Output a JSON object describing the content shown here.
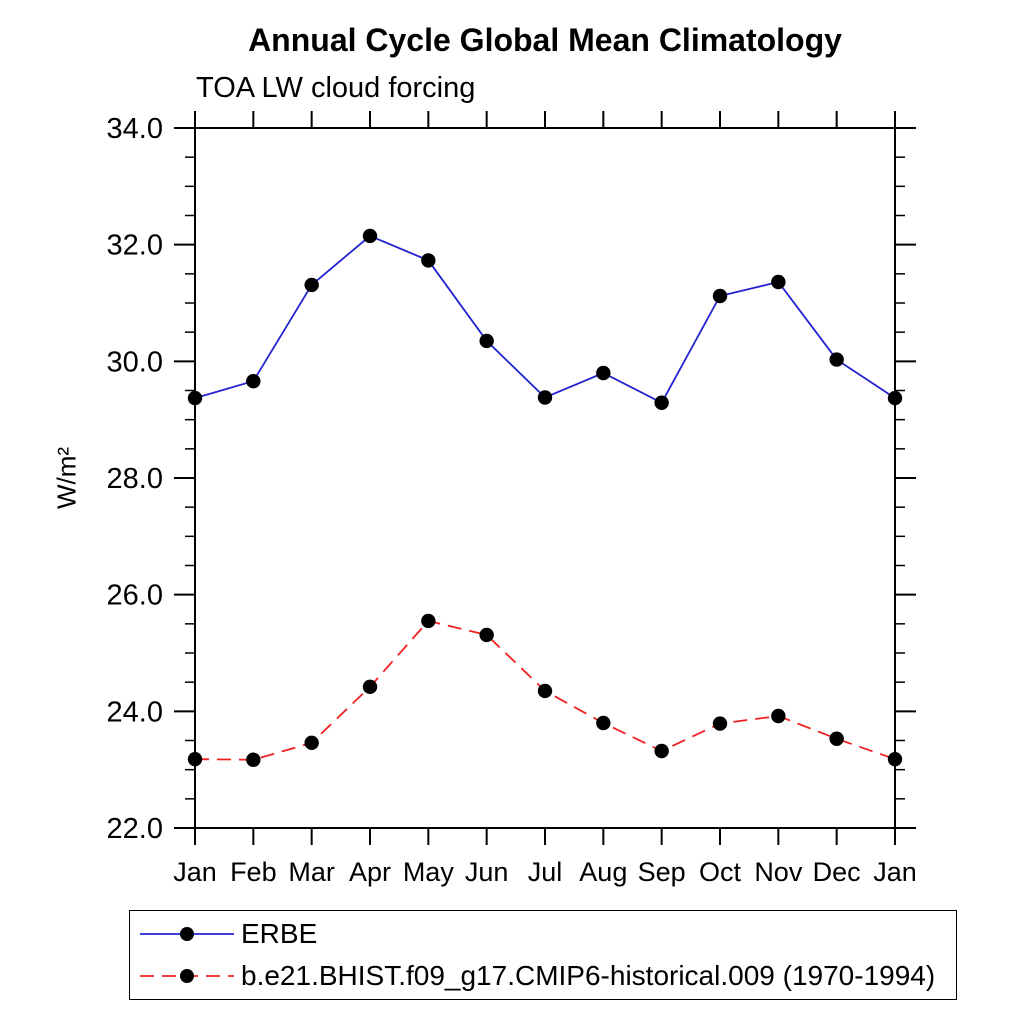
{
  "chart_data": {
    "type": "line",
    "title": "Annual Cycle Global Mean Climatology",
    "subtitle": "TOA LW cloud forcing",
    "ylabel": "W/m²",
    "categories": [
      "Jan",
      "Feb",
      "Mar",
      "Apr",
      "May",
      "Jun",
      "Jul",
      "Aug",
      "Sep",
      "Oct",
      "Nov",
      "Dec",
      "Jan"
    ],
    "ylim": [
      22.0,
      34.0
    ],
    "y_tick_labels": [
      "22.0",
      "24.0",
      "26.0",
      "28.0",
      "30.0",
      "32.0",
      "34.0"
    ],
    "y_minor_tick_step": 0.5,
    "grid": false,
    "legend_position": "bottom-left boxed",
    "axis_color": "#000000",
    "marker": "filled-circle",
    "marker_color": "#000000",
    "series": [
      {
        "name": "ERBE",
        "color": "#2222d2",
        "line_style": "solid",
        "values": [
          29.37,
          29.66,
          31.31,
          32.15,
          31.73,
          30.35,
          29.38,
          29.8,
          29.29,
          31.12,
          31.36,
          30.03,
          29.37
        ]
      },
      {
        "name": "b.e21.BHIST.f09_g17.CMIP6-historical.009 (1970-1994)",
        "color": "#f22020",
        "line_style": "dashed",
        "values": [
          23.18,
          23.17,
          23.46,
          24.42,
          25.55,
          25.31,
          24.35,
          23.8,
          23.32,
          23.79,
          23.92,
          23.53,
          23.18
        ]
      }
    ]
  }
}
